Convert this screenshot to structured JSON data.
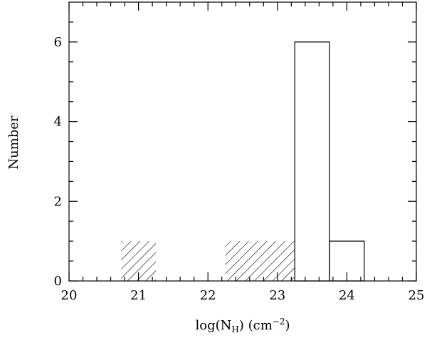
{
  "chart_data": {
    "type": "histogram",
    "xlabel": [
      "log(N",
      "H",
      ")  (cm",
      "−2",
      ")"
    ],
    "ylabel": "Number",
    "bins": [
      20.75,
      21.25,
      21.75,
      22.25,
      22.75,
      23.25,
      23.75,
      24.25
    ],
    "series": [
      {
        "fill": "hatch",
        "color": "#000000",
        "values": [
          1,
          0,
          0,
          1,
          1,
          0,
          0
        ]
      },
      {
        "fill": "none",
        "color": "#000000",
        "values": [
          0,
          0,
          0,
          0,
          0,
          6,
          1
        ]
      }
    ],
    "xlim": [
      20,
      25
    ],
    "ylim": [
      0,
      7
    ],
    "xticks": [
      20,
      21,
      22,
      23,
      24,
      25
    ],
    "yticks": [
      0,
      2,
      4,
      6
    ],
    "xticks_minor": [
      20.2,
      20.4,
      20.6,
      20.8,
      21.2,
      21.4,
      21.6,
      21.8,
      22.2,
      22.4,
      22.6,
      22.8,
      23.2,
      23.4,
      23.6,
      23.8,
      24.2,
      24.4,
      24.6,
      24.8
    ],
    "yticks_minor": [
      0.5,
      1,
      1.5,
      2.5,
      3,
      3.5,
      4.5,
      5,
      5.5,
      6.5
    ]
  }
}
